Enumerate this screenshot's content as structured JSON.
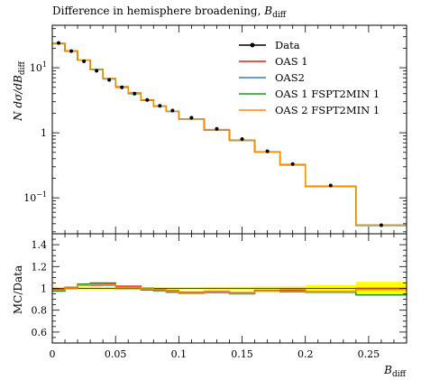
{
  "chart_data": [
    {
      "type": "line",
      "title": "Difference in hemisphere broadening, B_diff",
      "title_text": "Difference in hemisphere broadening, ",
      "title_symbol": "B",
      "title_sub": "diff",
      "ylabel_prefix": "N dσ/dB",
      "ylabel_sub": "diff",
      "yscale": "log",
      "ylim": [
        0.028,
        45
      ],
      "xlim": [
        0,
        0.28
      ],
      "yticks": [
        {
          "value": 0.1,
          "base": "10",
          "exp": "−1"
        },
        {
          "value": 1,
          "base": "1",
          "exp": ""
        },
        {
          "value": 10,
          "base": "10",
          "exp": "1"
        }
      ],
      "bin_edges": [
        0,
        0.01,
        0.02,
        0.03,
        0.04,
        0.05,
        0.06,
        0.07,
        0.08,
        0.09,
        0.1,
        0.12,
        0.14,
        0.16,
        0.18,
        0.2,
        0.24,
        0.28
      ],
      "legend": [
        {
          "label": "Data",
          "color": "#000000",
          "marker": true
        },
        {
          "label": "OAS 1",
          "color": "#e41a1c"
        },
        {
          "label": "OAS2",
          "color": "#377eb8"
        },
        {
          "label": "OAS 1 FSPT2MIN 1",
          "color": "#1a9a1a"
        },
        {
          "label": "OAS 2 FSPT2MIN 1",
          "color": "#ff8c00"
        }
      ],
      "data_points": {
        "x": [
          0.005,
          0.015,
          0.025,
          0.035,
          0.045,
          0.055,
          0.065,
          0.075,
          0.085,
          0.095,
          0.11,
          0.13,
          0.15,
          0.17,
          0.19,
          0.22,
          0.26
        ],
        "y": [
          24.0,
          18.0,
          12.6,
          9.0,
          6.5,
          5.0,
          4.0,
          3.2,
          2.6,
          2.2,
          1.7,
          1.15,
          0.8,
          0.52,
          0.33,
          0.155,
          0.038
        ]
      },
      "series": [
        {
          "name": "OAS 1",
          "color": "#e41a1c",
          "values": [
            23.8,
            18.2,
            13.0,
            9.3,
            6.8,
            5.1,
            4.1,
            3.2,
            2.58,
            2.15,
            1.63,
            1.12,
            0.77,
            0.51,
            0.325,
            0.15,
            0.038
          ]
        },
        {
          "name": "OAS2",
          "color": "#377eb8",
          "values": [
            23.5,
            18.0,
            13.0,
            9.4,
            6.7,
            5.0,
            4.0,
            3.15,
            2.55,
            2.12,
            1.62,
            1.1,
            0.76,
            0.51,
            0.32,
            0.15,
            0.038
          ]
        },
        {
          "name": "OAS 1 FSPT2MIN 1",
          "color": "#1a9a1a",
          "values": [
            23.4,
            18.0,
            13.1,
            9.4,
            6.8,
            5.0,
            4.0,
            3.16,
            2.55,
            2.15,
            1.64,
            1.11,
            0.77,
            0.51,
            0.32,
            0.15,
            0.0375
          ]
        },
        {
          "name": "OAS 2 FSPT2MIN 1",
          "color": "#ff8c00",
          "values": [
            23.6,
            18.1,
            13.0,
            9.3,
            6.75,
            5.05,
            4.05,
            3.18,
            2.57,
            2.14,
            1.63,
            1.11,
            0.765,
            0.505,
            0.322,
            0.15,
            0.038
          ]
        }
      ]
    },
    {
      "type": "line",
      "ylabel": "MC/Data",
      "xlabel_symbol": "B",
      "xlabel_sub": "diff",
      "xlim": [
        0,
        0.28
      ],
      "ylim": [
        0.5,
        1.5
      ],
      "yticks": [
        0.6,
        0.8,
        1,
        1.2,
        1.4
      ],
      "xticks": [
        0,
        0.05,
        0.1,
        0.15,
        0.2,
        0.25
      ],
      "xtick_labels": [
        "0",
        "0.05",
        "0.1",
        "0.15",
        "0.2",
        "0.25"
      ],
      "ytick_labels": [
        "0.6",
        "0.8",
        "1",
        "1.2",
        "1.4"
      ],
      "bin_edges": [
        0,
        0.01,
        0.02,
        0.03,
        0.04,
        0.05,
        0.06,
        0.07,
        0.08,
        0.09,
        0.1,
        0.12,
        0.14,
        0.16,
        0.18,
        0.2,
        0.24,
        0.28
      ],
      "band_color": "#ffff00",
      "band_halfwidth": [
        0.01,
        0.01,
        0.01,
        0.01,
        0.01,
        0.01,
        0.01,
        0.01,
        0.01,
        0.01,
        0.01,
        0.012,
        0.015,
        0.018,
        0.02,
        0.03,
        0.06
      ],
      "series": [
        {
          "name": "OAS 1",
          "color": "#e41a1c",
          "values": [
            0.99,
            1.01,
            1.03,
            1.03,
            1.04,
            1.02,
            1.02,
            1.0,
            0.99,
            0.98,
            0.96,
            0.97,
            0.96,
            0.98,
            0.985,
            0.97,
            1.0
          ]
        },
        {
          "name": "OAS2",
          "color": "#377eb8",
          "values": [
            0.98,
            1.0,
            1.03,
            1.04,
            1.03,
            1.0,
            1.0,
            0.985,
            0.98,
            0.965,
            0.955,
            0.96,
            0.95,
            0.98,
            0.97,
            0.965,
            0.99
          ]
        },
        {
          "name": "OAS 1 FSPT2MIN 1",
          "color": "#1a9a1a",
          "values": [
            0.975,
            1.0,
            1.04,
            1.05,
            1.05,
            1.0,
            1.0,
            1.0,
            0.98,
            0.975,
            0.965,
            0.965,
            0.96,
            0.98,
            0.97,
            0.965,
            0.94
          ]
        },
        {
          "name": "OAS 2 FSPT2MIN 1",
          "color": "#ff8c00",
          "values": [
            0.985,
            1.005,
            1.03,
            1.035,
            1.035,
            1.01,
            1.01,
            0.995,
            0.99,
            0.975,
            0.96,
            0.965,
            0.955,
            0.975,
            0.975,
            0.97,
            0.99
          ]
        }
      ]
    }
  ]
}
